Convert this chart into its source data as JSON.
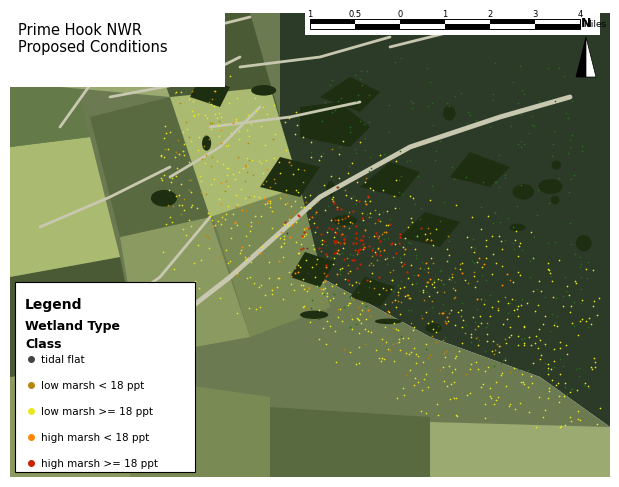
{
  "title": "Prime Hook NWR\nProposed Conditions",
  "title_fontsize": 11,
  "fig_width": 6.0,
  "fig_height": 4.64,
  "background_color": "#ffffff",
  "legend": {
    "title_line1": "Legend",
    "title_line2": "Wetland Type",
    "title_line3": "Class",
    "items": [
      {
        "label": "tidal flat",
        "color": "#444444"
      },
      {
        "label": "low marsh < 18 ppt",
        "color": "#b8860b"
      },
      {
        "label": "low marsh >= 18 ppt",
        "color": "#e8e820"
      },
      {
        "label": "high marsh < 18 ppt",
        "color": "#ff8800"
      },
      {
        "label": "high marsh >= 18 ppt",
        "color": "#cc2200"
      }
    ]
  },
  "water_color": "#2d3a2a",
  "land_base_color": "#6b7c50",
  "field_colors": [
    "#8a9a60",
    "#7a8a55",
    "#5a6a40",
    "#9aaa70",
    "#4a5a35",
    "#aaba70",
    "#647a48"
  ],
  "dark_green": "#1e2e10",
  "road_color": "#c8c8b0",
  "scalebar_labels": [
    "1",
    "0.5",
    "0",
    "1",
    "2",
    "3",
    "4"
  ],
  "scalebar_unit": "Miles"
}
